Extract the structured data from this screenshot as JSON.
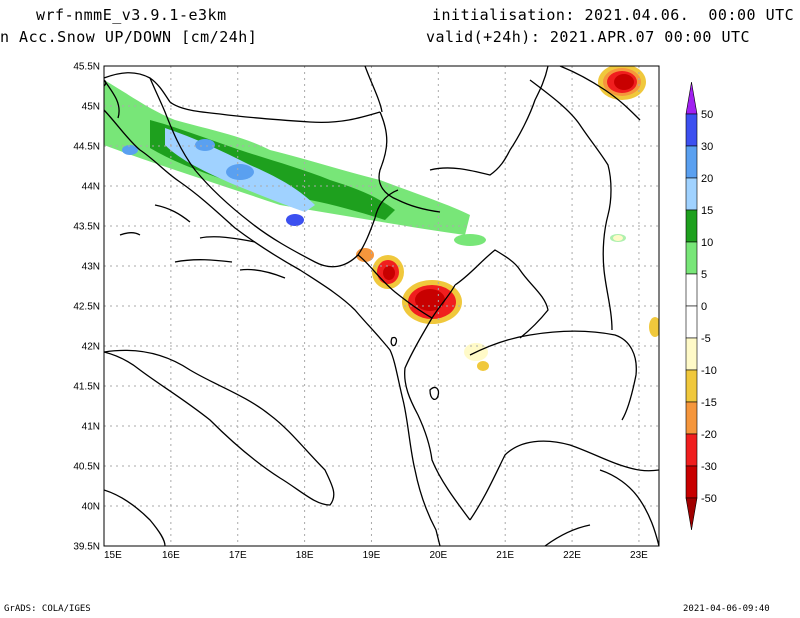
{
  "header": {
    "model": "wrf-nmmE_v3.9.1-e3km",
    "field": "n Acc.Snow UP/DOWN [cm/24h]",
    "init": "initialisation: 2021.04.06.  00:00 UTC",
    "valid": "valid(+24h): 2021.APR.07 00:00 UTC"
  },
  "footer": {
    "left": "GrADS: COLA/IGES",
    "right": "2021-04-06-09:40"
  },
  "map": {
    "lat_labels": [
      "45.5N",
      "45N",
      "44.5N",
      "44N",
      "43.5N",
      "43N",
      "42.5N",
      "42N",
      "41.5N",
      "41N",
      "40.5N",
      "40N",
      "39.5N"
    ],
    "lon_labels": [
      "15E",
      "16E",
      "17E",
      "18E",
      "19E",
      "20E",
      "21E",
      "22E",
      "23E"
    ],
    "extent": {
      "lon": [
        15.0,
        23.3
      ],
      "lat": [
        39.5,
        45.5
      ]
    }
  },
  "legend": {
    "entries": [
      {
        "label": "50",
        "color": "#a020f0"
      },
      {
        "label": "30",
        "color": "#3c50f0"
      },
      {
        "label": "20",
        "color": "#5aa0f0"
      },
      {
        "label": "15",
        "color": "#a0d2ff"
      },
      {
        "label": "10",
        "color": "#1ea01e"
      },
      {
        "label": "5",
        "color": "#78e678"
      },
      {
        "label": "0",
        "color": "#ffffff"
      },
      {
        "label": "-5",
        "color": "#ffffff"
      },
      {
        "label": "-10",
        "color": "#fffac8"
      },
      {
        "label": "-15",
        "color": "#f0c83c"
      },
      {
        "label": "-20",
        "color": "#f5963c"
      },
      {
        "label": "-30",
        "color": "#f01e1e"
      },
      {
        "label": "-50",
        "color": "#c80000"
      }
    ],
    "bottom_color": "#a00000"
  },
  "colors": {
    "snow_light": "#78e678",
    "snow_mid": "#1ea01e",
    "snow_pale": "#a0d2ff",
    "snow_blue": "#5aa0f0",
    "snow_deep": "#3c50f0",
    "melt_pale": "#fffac8",
    "melt_yellow": "#f0c83c",
    "melt_orange": "#f5963c",
    "melt_red": "#f01e1e",
    "melt_dark": "#c80000"
  }
}
